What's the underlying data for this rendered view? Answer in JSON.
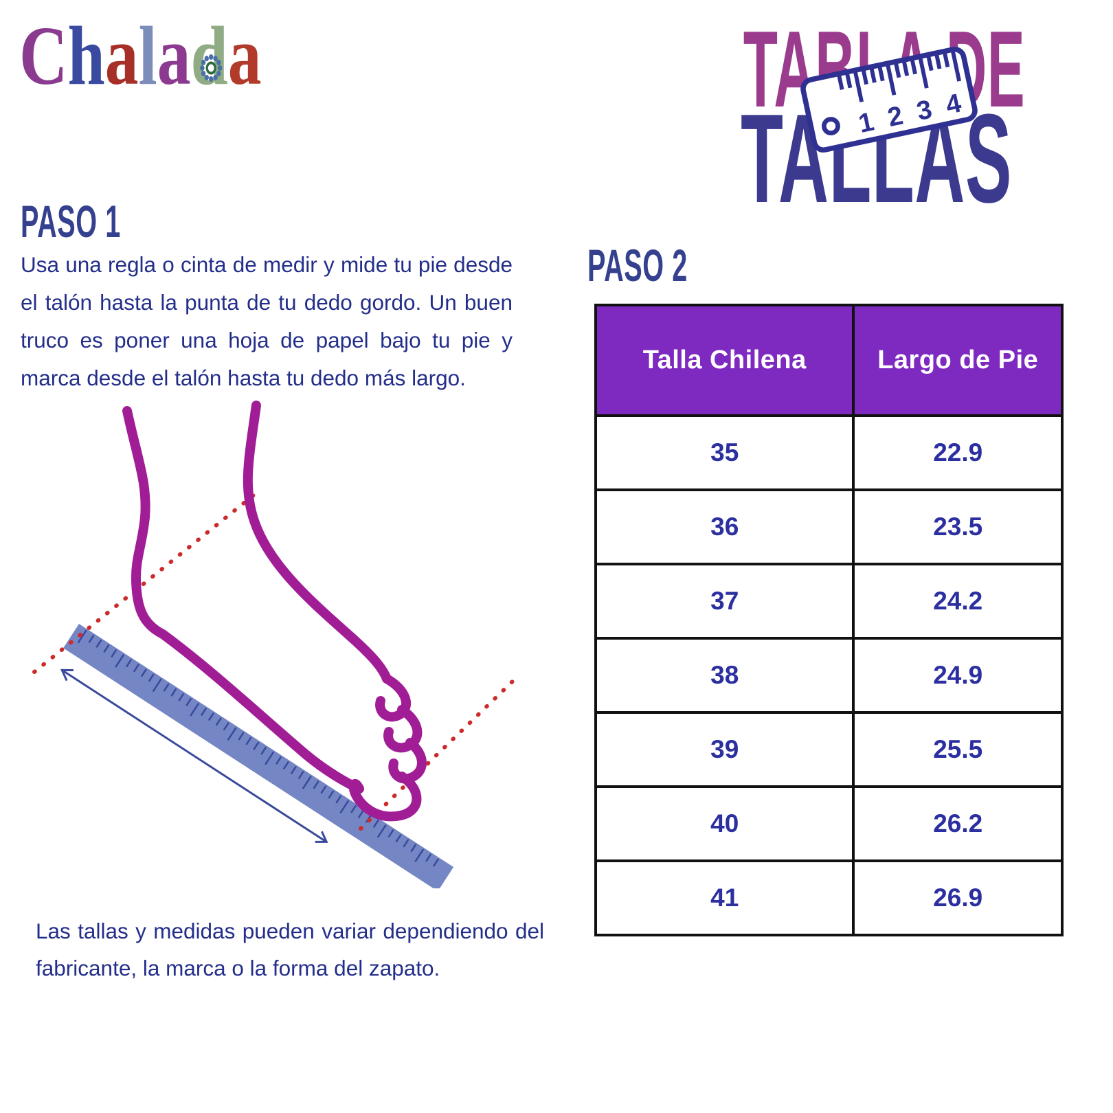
{
  "brand": {
    "name": "Chalada",
    "letters": [
      {
        "char": "C",
        "color": "#8a3a8f"
      },
      {
        "char": "h",
        "color": "#3a4aa0"
      },
      {
        "char": "a",
        "color": "#a63028"
      },
      {
        "char": "l",
        "color": "#7d8dba"
      },
      {
        "char": "a",
        "color": "#8b3a8f"
      },
      {
        "char": "d",
        "color": "#8fac85"
      },
      {
        "char": "a",
        "color": "#b13a2a"
      }
    ],
    "flower_color_petals": "#4a6fa5",
    "flower_color_center": "#2d6a3f"
  },
  "title": {
    "line1": "TABLA DE",
    "line2": "TALLAS",
    "line1_color": "#9a3b8d",
    "line2_color": "#3c3a8e",
    "ruler_icon_numbers": [
      "1",
      "2",
      "3",
      "4"
    ],
    "ruler_icon_color": "#2e3192"
  },
  "step1": {
    "heading": "PASO 1",
    "body": "Usa una regla o cinta de medir y mide tu pie desde el talón hasta la punta de tu dedo gordo. Un buen truco es poner una hoja de papel bajo tu pie y marca desde el talón hasta tu dedo más largo."
  },
  "step2": {
    "heading": "PASO 2"
  },
  "size_table": {
    "headers": [
      "Talla Chilena",
      "Largo de Pie"
    ],
    "rows": [
      [
        "35",
        "22.9"
      ],
      [
        "36",
        "23.5"
      ],
      [
        "37",
        "24.2"
      ],
      [
        "38",
        "24.9"
      ],
      [
        "39",
        "25.5"
      ],
      [
        "40",
        "26.2"
      ],
      [
        "41",
        "26.9"
      ]
    ],
    "header_bg": "#7e2ac1",
    "header_text_color": "#ffffff",
    "cell_text_color": "#2b2fa0",
    "border_color": "#111111"
  },
  "disclaimer": "Las tallas y medidas pueden variar dependiendo del fabricante, la marca o la forma del zapato.",
  "colors": {
    "heading_navy": "#35418f",
    "body_text": "#232e8a",
    "foot_outline": "#a11d96",
    "ruler_fill": "#7486c4",
    "ruler_ticks": "#39499c",
    "dotted_line": "#cc2b2b",
    "measure_arrow": "#3a4a9c"
  }
}
